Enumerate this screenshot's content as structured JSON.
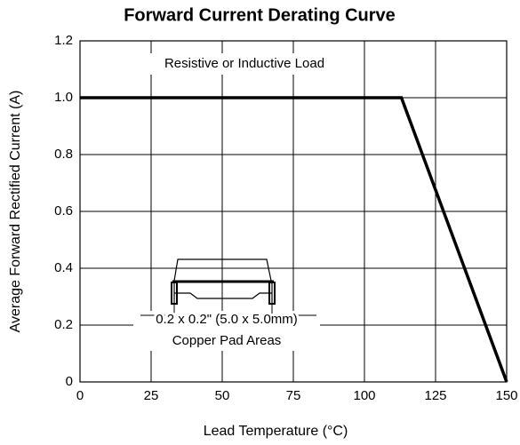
{
  "chart_data": {
    "type": "line",
    "title": "Forward Current Derating Curve",
    "x_label": "Lead Temperature (°C)",
    "y_label": "Average Forward Rectified Current (A)",
    "annotations": [
      "Resistive or Inductive Load",
      "0.2 x 0.2\" (5.0 x 5.0mm)",
      "Copper Pad Areas"
    ],
    "x": [
      0,
      113,
      150
    ],
    "series": [
      {
        "color": "#000000",
        "values": [
          1.0,
          1.0,
          0
        ]
      }
    ],
    "xlim": [
      0,
      150
    ],
    "xticks": [
      0,
      25,
      50,
      75,
      100,
      125,
      150
    ],
    "ylim": [
      0,
      1.2
    ],
    "yticks": [
      0,
      0.2,
      0.4,
      0.6,
      0.8,
      {
        "value": 1,
        "label": "1.0"
      },
      1.2
    ],
    "grid": true
  }
}
